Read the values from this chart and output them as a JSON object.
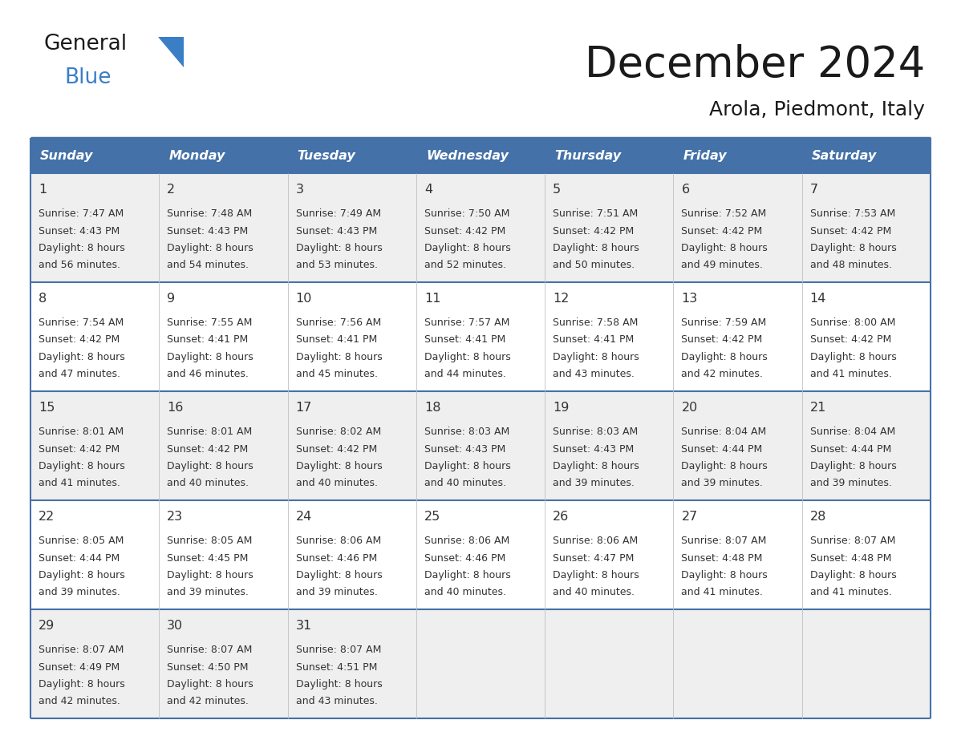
{
  "title": "December 2024",
  "subtitle": "Arola, Piedmont, Italy",
  "header_bg_color": "#4472A8",
  "header_text_color": "#FFFFFF",
  "header_days": [
    "Sunday",
    "Monday",
    "Tuesday",
    "Wednesday",
    "Thursday",
    "Friday",
    "Saturday"
  ],
  "row_bg_even": "#EFEFEF",
  "row_bg_odd": "#FFFFFF",
  "border_color": "#4472A8",
  "text_color": "#333333",
  "title_color": "#1a1a1a",
  "logo_general_color": "#1a1a1a",
  "logo_blue_color": "#3A7EC6",
  "logo_triangle_color": "#3A7EC6",
  "days": [
    {
      "day": 1,
      "col": 0,
      "row": 0,
      "sunrise": "7:47 AM",
      "sunset": "4:43 PM",
      "daylight": "8 hours",
      "daylight2": "and 56 minutes."
    },
    {
      "day": 2,
      "col": 1,
      "row": 0,
      "sunrise": "7:48 AM",
      "sunset": "4:43 PM",
      "daylight": "8 hours",
      "daylight2": "and 54 minutes."
    },
    {
      "day": 3,
      "col": 2,
      "row": 0,
      "sunrise": "7:49 AM",
      "sunset": "4:43 PM",
      "daylight": "8 hours",
      "daylight2": "and 53 minutes."
    },
    {
      "day": 4,
      "col": 3,
      "row": 0,
      "sunrise": "7:50 AM",
      "sunset": "4:42 PM",
      "daylight": "8 hours",
      "daylight2": "and 52 minutes."
    },
    {
      "day": 5,
      "col": 4,
      "row": 0,
      "sunrise": "7:51 AM",
      "sunset": "4:42 PM",
      "daylight": "8 hours",
      "daylight2": "and 50 minutes."
    },
    {
      "day": 6,
      "col": 5,
      "row": 0,
      "sunrise": "7:52 AM",
      "sunset": "4:42 PM",
      "daylight": "8 hours",
      "daylight2": "and 49 minutes."
    },
    {
      "day": 7,
      "col": 6,
      "row": 0,
      "sunrise": "7:53 AM",
      "sunset": "4:42 PM",
      "daylight": "8 hours",
      "daylight2": "and 48 minutes."
    },
    {
      "day": 8,
      "col": 0,
      "row": 1,
      "sunrise": "7:54 AM",
      "sunset": "4:42 PM",
      "daylight": "8 hours",
      "daylight2": "and 47 minutes."
    },
    {
      "day": 9,
      "col": 1,
      "row": 1,
      "sunrise": "7:55 AM",
      "sunset": "4:41 PM",
      "daylight": "8 hours",
      "daylight2": "and 46 minutes."
    },
    {
      "day": 10,
      "col": 2,
      "row": 1,
      "sunrise": "7:56 AM",
      "sunset": "4:41 PM",
      "daylight": "8 hours",
      "daylight2": "and 45 minutes."
    },
    {
      "day": 11,
      "col": 3,
      "row": 1,
      "sunrise": "7:57 AM",
      "sunset": "4:41 PM",
      "daylight": "8 hours",
      "daylight2": "and 44 minutes."
    },
    {
      "day": 12,
      "col": 4,
      "row": 1,
      "sunrise": "7:58 AM",
      "sunset": "4:41 PM",
      "daylight": "8 hours",
      "daylight2": "and 43 minutes."
    },
    {
      "day": 13,
      "col": 5,
      "row": 1,
      "sunrise": "7:59 AM",
      "sunset": "4:42 PM",
      "daylight": "8 hours",
      "daylight2": "and 42 minutes."
    },
    {
      "day": 14,
      "col": 6,
      "row": 1,
      "sunrise": "8:00 AM",
      "sunset": "4:42 PM",
      "daylight": "8 hours",
      "daylight2": "and 41 minutes."
    },
    {
      "day": 15,
      "col": 0,
      "row": 2,
      "sunrise": "8:01 AM",
      "sunset": "4:42 PM",
      "daylight": "8 hours",
      "daylight2": "and 41 minutes."
    },
    {
      "day": 16,
      "col": 1,
      "row": 2,
      "sunrise": "8:01 AM",
      "sunset": "4:42 PM",
      "daylight": "8 hours",
      "daylight2": "and 40 minutes."
    },
    {
      "day": 17,
      "col": 2,
      "row": 2,
      "sunrise": "8:02 AM",
      "sunset": "4:42 PM",
      "daylight": "8 hours",
      "daylight2": "and 40 minutes."
    },
    {
      "day": 18,
      "col": 3,
      "row": 2,
      "sunrise": "8:03 AM",
      "sunset": "4:43 PM",
      "daylight": "8 hours",
      "daylight2": "and 40 minutes."
    },
    {
      "day": 19,
      "col": 4,
      "row": 2,
      "sunrise": "8:03 AM",
      "sunset": "4:43 PM",
      "daylight": "8 hours",
      "daylight2": "and 39 minutes."
    },
    {
      "day": 20,
      "col": 5,
      "row": 2,
      "sunrise": "8:04 AM",
      "sunset": "4:44 PM",
      "daylight": "8 hours",
      "daylight2": "and 39 minutes."
    },
    {
      "day": 21,
      "col": 6,
      "row": 2,
      "sunrise": "8:04 AM",
      "sunset": "4:44 PM",
      "daylight": "8 hours",
      "daylight2": "and 39 minutes."
    },
    {
      "day": 22,
      "col": 0,
      "row": 3,
      "sunrise": "8:05 AM",
      "sunset": "4:44 PM",
      "daylight": "8 hours",
      "daylight2": "and 39 minutes."
    },
    {
      "day": 23,
      "col": 1,
      "row": 3,
      "sunrise": "8:05 AM",
      "sunset": "4:45 PM",
      "daylight": "8 hours",
      "daylight2": "and 39 minutes."
    },
    {
      "day": 24,
      "col": 2,
      "row": 3,
      "sunrise": "8:06 AM",
      "sunset": "4:46 PM",
      "daylight": "8 hours",
      "daylight2": "and 39 minutes."
    },
    {
      "day": 25,
      "col": 3,
      "row": 3,
      "sunrise": "8:06 AM",
      "sunset": "4:46 PM",
      "daylight": "8 hours",
      "daylight2": "and 40 minutes."
    },
    {
      "day": 26,
      "col": 4,
      "row": 3,
      "sunrise": "8:06 AM",
      "sunset": "4:47 PM",
      "daylight": "8 hours",
      "daylight2": "and 40 minutes."
    },
    {
      "day": 27,
      "col": 5,
      "row": 3,
      "sunrise": "8:07 AM",
      "sunset": "4:48 PM",
      "daylight": "8 hours",
      "daylight2": "and 41 minutes."
    },
    {
      "day": 28,
      "col": 6,
      "row": 3,
      "sunrise": "8:07 AM",
      "sunset": "4:48 PM",
      "daylight": "8 hours",
      "daylight2": "and 41 minutes."
    },
    {
      "day": 29,
      "col": 0,
      "row": 4,
      "sunrise": "8:07 AM",
      "sunset": "4:49 PM",
      "daylight": "8 hours",
      "daylight2": "and 42 minutes."
    },
    {
      "day": 30,
      "col": 1,
      "row": 4,
      "sunrise": "8:07 AM",
      "sunset": "4:50 PM",
      "daylight": "8 hours",
      "daylight2": "and 42 minutes."
    },
    {
      "day": 31,
      "col": 2,
      "row": 4,
      "sunrise": "8:07 AM",
      "sunset": "4:51 PM",
      "daylight": "8 hours",
      "daylight2": "and 43 minutes."
    }
  ],
  "fig_width": 11.88,
  "fig_height": 9.18,
  "dpi": 100
}
